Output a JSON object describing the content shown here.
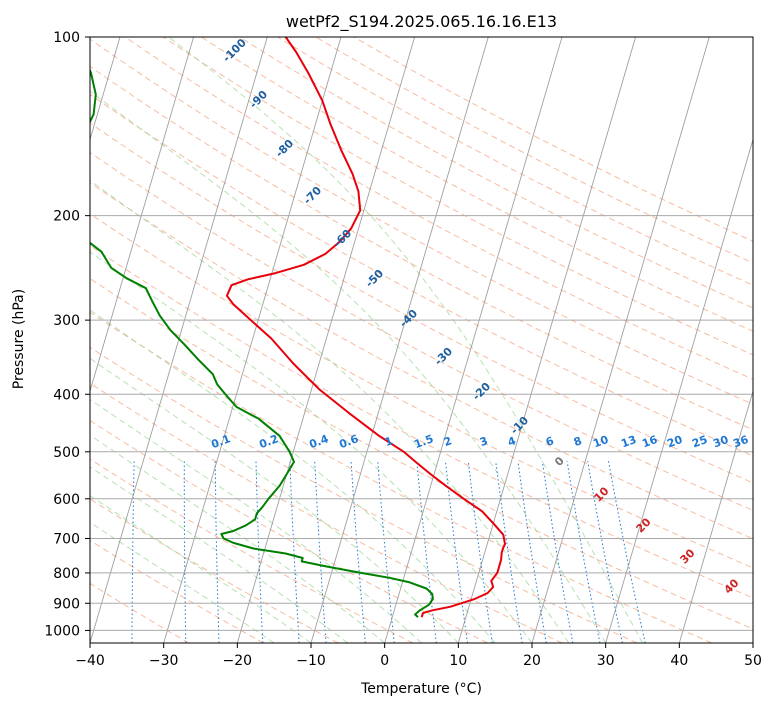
{
  "chart_data": {
    "type": "line",
    "subtype": "skew-T log-p sounding",
    "title": "wetPf2_S194.2025.065.16.16.E13",
    "xlabel": "Temperature (°C)",
    "ylabel": "Pressure (hPa)",
    "xlim": [
      -40,
      50
    ],
    "ylim": [
      1050,
      100
    ],
    "y_scale": "log",
    "grid": true,
    "x_ticks": [
      "−40",
      "−30",
      "−20",
      "−10",
      "0",
      "10",
      "20",
      "30",
      "40",
      "50"
    ],
    "y_ticks": [
      "100",
      "200",
      "300",
      "400",
      "500",
      "600",
      "700",
      "800",
      "900",
      "1000"
    ],
    "x_tick_values": [
      -40,
      -30,
      -20,
      -10,
      0,
      10,
      20,
      30,
      40,
      50
    ],
    "y_tick_values": [
      100,
      200,
      300,
      400,
      500,
      600,
      700,
      800,
      900,
      1000
    ],
    "colors": {
      "temperature": "#e8000b",
      "dewpoint": "#008000",
      "isotherm_grid": "#888888",
      "dry_adiabat": "#f4a582",
      "moist_adiabat": "#a6d9a0",
      "mixing_ratio": "#1f77d4",
      "theta_e_label": "#1f5fa0",
      "warm_label": "#cc2222"
    },
    "series": [
      {
        "key": "temperature",
        "points": [
          [
            4.0,
            950
          ],
          [
            4.0,
            935
          ],
          [
            5.2,
            925
          ],
          [
            7.5,
            912
          ],
          [
            10.5,
            885
          ],
          [
            12.0,
            865
          ],
          [
            12.5,
            845
          ],
          [
            12.0,
            825
          ],
          [
            12.5,
            800
          ],
          [
            12.5,
            778
          ],
          [
            12.5,
            760
          ],
          [
            12.4,
            750
          ],
          [
            12.3,
            740
          ],
          [
            12.3,
            728
          ],
          [
            12.4,
            715
          ],
          [
            11.8,
            690
          ],
          [
            10.0,
            660
          ],
          [
            8.0,
            630
          ],
          [
            5.0,
            600
          ],
          [
            2.0,
            570
          ],
          [
            -0.5,
            545
          ],
          [
            -3.0,
            520
          ],
          [
            -5.0,
            500
          ],
          [
            -9.0,
            470
          ],
          [
            -14.0,
            430
          ],
          [
            -19.0,
            392
          ],
          [
            -23.5,
            355
          ],
          [
            -27.5,
            322
          ],
          [
            -31.0,
            300
          ],
          [
            -34.0,
            282
          ],
          [
            -35.2,
            273
          ],
          [
            -35.0,
            262
          ],
          [
            -33.0,
            256
          ],
          [
            -29.5,
            250
          ],
          [
            -26.0,
            242
          ],
          [
            -23.5,
            232
          ],
          [
            -22.0,
            221
          ],
          [
            -21.0,
            210
          ],
          [
            -20.5,
            196
          ],
          [
            -21.5,
            182
          ],
          [
            -23.0,
            170
          ],
          [
            -25.5,
            155
          ],
          [
            -28.0,
            140
          ],
          [
            -30.0,
            128
          ],
          [
            -33.0,
            115
          ],
          [
            -35.5,
            106
          ],
          [
            -37.5,
            100
          ]
        ]
      },
      {
        "key": "dewpoint",
        "points": [
          [
            3.5,
            950
          ],
          [
            3.0,
            940
          ],
          [
            3.5,
            925
          ],
          [
            4.5,
            905
          ],
          [
            4.8,
            885
          ],
          [
            4.5,
            868
          ],
          [
            3.5,
            850
          ],
          [
            1.0,
            830
          ],
          [
            -2.0,
            815
          ],
          [
            -6.0,
            800
          ],
          [
            -11.0,
            780
          ],
          [
            -14.5,
            765
          ],
          [
            -14.5,
            755
          ],
          [
            -17.0,
            742
          ],
          [
            -21.5,
            728
          ],
          [
            -24.5,
            712
          ],
          [
            -26.0,
            700
          ],
          [
            -26.5,
            688
          ],
          [
            -25.0,
            680
          ],
          [
            -23.5,
            665
          ],
          [
            -22.5,
            650
          ],
          [
            -22.5,
            635
          ],
          [
            -22.0,
            620
          ],
          [
            -21.5,
            600
          ],
          [
            -20.5,
            570
          ],
          [
            -20.0,
            545
          ],
          [
            -19.5,
            520
          ],
          [
            -20.5,
            500
          ],
          [
            -22.5,
            470
          ],
          [
            -26.0,
            440
          ],
          [
            -29.5,
            420
          ],
          [
            -31.5,
            400
          ],
          [
            -33.0,
            385
          ],
          [
            -34.0,
            370
          ],
          [
            -36.5,
            350
          ],
          [
            -39.0,
            330
          ],
          [
            -41.5,
            312
          ],
          [
            -43.5,
            295
          ],
          [
            -45.0,
            280
          ],
          [
            -46.5,
            265
          ],
          [
            -49.5,
            255
          ],
          [
            -52.0,
            245
          ],
          [
            -54.0,
            230
          ],
          [
            -57.0,
            218
          ],
          [
            -58.5,
            208
          ],
          [
            -60.5,
            197
          ],
          [
            -63.0,
            185
          ],
          [
            -65.0,
            175
          ],
          [
            -66.0,
            167
          ],
          [
            -64.5,
            160
          ],
          [
            -62.5,
            155
          ],
          [
            -61.0,
            145
          ],
          [
            -60.5,
            135
          ],
          [
            -61.0,
            125
          ],
          [
            -62.5,
            115
          ],
          [
            -64.5,
            106
          ],
          [
            -66.0,
            100
          ]
        ]
      }
    ],
    "theta_e_labels": [
      "-100",
      "-90",
      "-80",
      "-70",
      "-60",
      "-50",
      "-40",
      "-30",
      "-20",
      "-10",
      "0",
      "10",
      "20",
      "30",
      "40"
    ],
    "mixing_ratio_labels": [
      "0.1",
      "0.2",
      "0.4",
      "0.6",
      "1",
      "1.5",
      "2",
      "3",
      "4",
      "6",
      "8",
      "10",
      "13",
      "16",
      "20",
      "25",
      "30",
      "36"
    ]
  }
}
